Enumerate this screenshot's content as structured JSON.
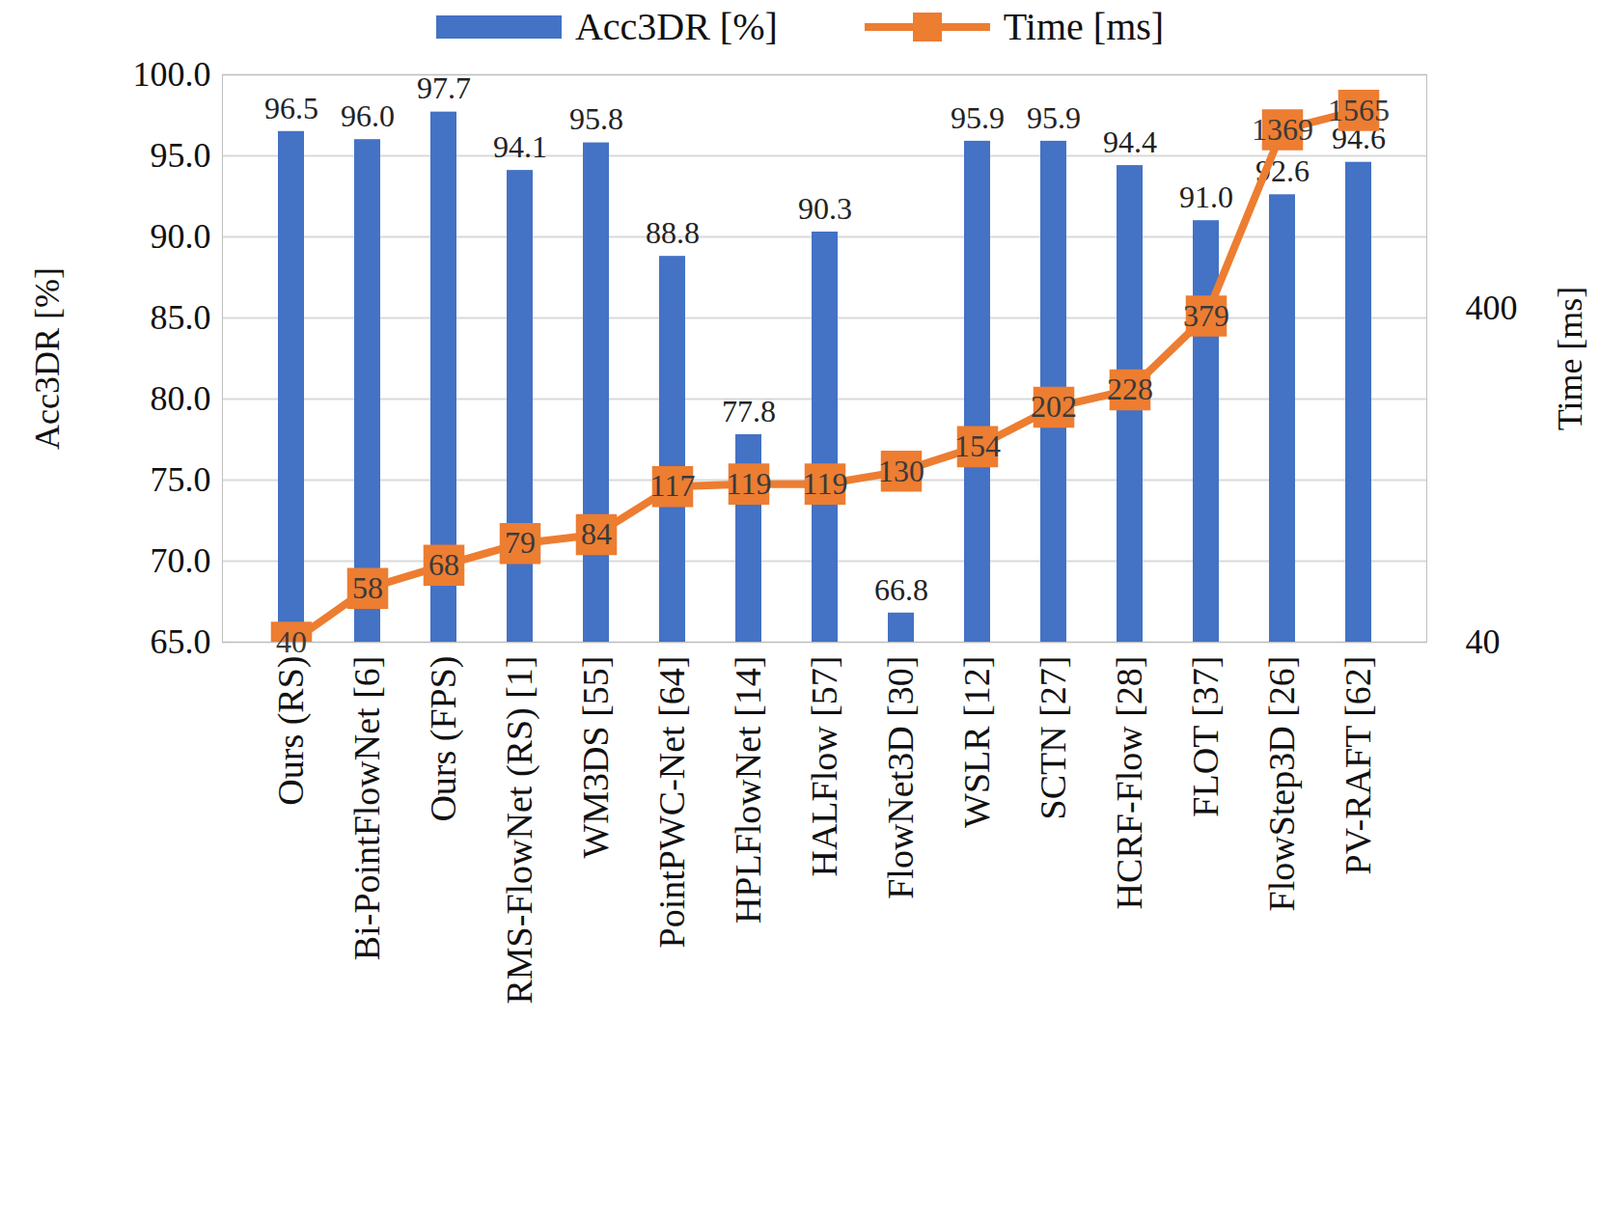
{
  "chart_data": {
    "type": "bar",
    "categories": [
      "Ours (RS)",
      "Bi-PointFlowNet [6]",
      "Ours (FPS)",
      "RMS-FlowNet (RS) [1]",
      "WM3DS [55]",
      "PointPWC-Net [64]",
      "HPLFlowNet [14]",
      "HALFlow [57]",
      "FlowNet3D [30]",
      "WSLR [12]",
      "SCTN [27]",
      "HCRF-Flow [28]",
      "FLOT [37]",
      "FlowStep3D [26]",
      "PV-RAFT [62]"
    ],
    "series": [
      {
        "name": "Acc3DR [%]",
        "type": "bar",
        "color": "#4472c4",
        "values": [
          96.5,
          96.0,
          97.7,
          94.1,
          95.8,
          88.8,
          77.8,
          90.3,
          66.8,
          95.9,
          95.9,
          94.4,
          91.0,
          92.6,
          94.6
        ],
        "value_labels": [
          "96.5",
          "96.0",
          "97.7",
          "94.1",
          "95.8",
          "88.8",
          "77.8",
          "90.3",
          "66.8",
          "95.9",
          "95.9",
          "94.4",
          "91.0",
          "92.6",
          "94.6"
        ]
      },
      {
        "name": "Time [ms]",
        "type": "line",
        "axis": "y2",
        "color": "#ed7d31",
        "marker": "square",
        "log": true,
        "values": [
          40,
          58,
          68,
          79,
          84,
          117,
          119,
          119,
          130,
          154,
          202,
          228,
          379,
          1369,
          1565
        ]
      }
    ],
    "y_label": "Acc3DR [%]",
    "y2_label": "Time [ms]",
    "ylim": [
      65,
      100
    ],
    "yticks": [
      {
        "value": 65,
        "label": "65.0"
      },
      {
        "value": 70,
        "label": "70.0"
      },
      {
        "value": 75,
        "label": "75.0"
      },
      {
        "value": 80,
        "label": "80.0"
      },
      {
        "value": 85,
        "label": "85.0"
      },
      {
        "value": 90,
        "label": "90.0"
      },
      {
        "value": 95,
        "label": "95.0"
      },
      {
        "value": 100,
        "label": "100.0"
      }
    ],
    "y2lim": [
      40,
      2000
    ],
    "y2ticks": [
      40,
      400
    ],
    "grid": true,
    "legend": "top",
    "data_labels": true
  }
}
